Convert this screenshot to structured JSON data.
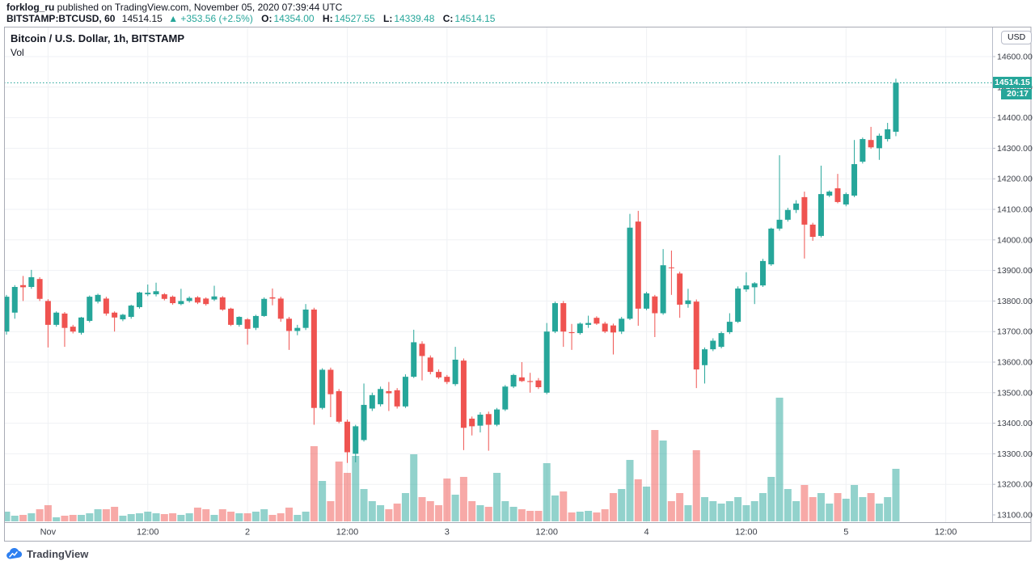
{
  "header": {
    "publisher": "forklog_ru",
    "publish_info": " published on TradingView.com, November 05, 2020 07:39:44 UTC",
    "symbol": "BITSTAMP:BTCUSD, 60",
    "last_price": "14514.15",
    "change": "▲ +353.56 (+2.5%)",
    "ohlc": [
      {
        "label": "O:",
        "value": "14354.00"
      },
      {
        "label": "H:",
        "value": "14527.55"
      },
      {
        "label": "L:",
        "value": "14339.48"
      },
      {
        "label": "C:",
        "value": "14514.15"
      }
    ]
  },
  "legend": {
    "title": "Bitcoin / U.S. Dollar, 1h, BITSTAMP",
    "indicator": "Vol"
  },
  "price_axis": {
    "currency": "USD",
    "last_price_label": "14514.15",
    "countdown": "20:17"
  },
  "footer": {
    "brand": "TradingView",
    "logo_icon": "tradingview-cloud-icon"
  },
  "colors": {
    "up": "#26a69a",
    "down": "#ef5350",
    "vol_opacity": 0.5,
    "grid": "#eff1f4",
    "axis_text": "#3c4049",
    "frame": "#a8abb5",
    "separator": "#b8bcc9",
    "last_price_line": "#26a69a",
    "label_bg": "#26a69a",
    "logo_blue": "#2d7ff0"
  },
  "chart_data": {
    "type": "candlestick",
    "title": "Bitcoin / U.S. Dollar, 1h, BITSTAMP",
    "interval": "1h",
    "currency": "USD",
    "last_price": 14514.15,
    "price_range": [
      13100,
      14600
    ],
    "grid": true,
    "y_ticks": [
      13100,
      13200,
      13300,
      13400,
      13500,
      13600,
      13700,
      13800,
      13900,
      14000,
      14100,
      14200,
      14300,
      14400,
      14500,
      14600
    ],
    "x_ticks": [
      {
        "index": 5,
        "label": "Nov"
      },
      {
        "index": 17,
        "label": "12:00"
      },
      {
        "index": 29,
        "label": "2"
      },
      {
        "index": 41,
        "label": "12:00"
      },
      {
        "index": 53,
        "label": "3"
      },
      {
        "index": 65,
        "label": "12:00"
      },
      {
        "index": 77,
        "label": "4"
      },
      {
        "index": 89,
        "label": "12:00"
      },
      {
        "index": 101,
        "label": "5"
      },
      {
        "index": 113,
        "label": "12:00"
      }
    ],
    "candles_format": [
      "open",
      "high",
      "low",
      "close",
      "volume"
    ],
    "candles": [
      [
        13700,
        13820,
        13690,
        13814,
        12
      ],
      [
        13762,
        13852,
        13742,
        13846,
        7
      ],
      [
        13852,
        13882,
        13800,
        13845,
        8
      ],
      [
        13846,
        13902,
        13840,
        13878,
        10
      ],
      [
        13872,
        13878,
        13800,
        13807,
        15
      ],
      [
        13800,
        13806,
        13648,
        13722,
        20
      ],
      [
        13722,
        13766,
        13716,
        13762,
        5
      ],
      [
        13759,
        13764,
        13650,
        13712,
        7
      ],
      [
        13716,
        13722,
        13694,
        13700,
        8
      ],
      [
        13696,
        13748,
        13690,
        13746,
        8
      ],
      [
        13735,
        13818,
        13730,
        13814,
        10
      ],
      [
        13798,
        13824,
        13792,
        13820,
        15
      ],
      [
        13808,
        13814,
        13752,
        13759,
        15
      ],
      [
        13762,
        13766,
        13700,
        13746,
        18
      ],
      [
        13740,
        13758,
        13734,
        13755,
        7
      ],
      [
        13748,
        13788,
        13742,
        13785,
        9
      ],
      [
        13780,
        13830,
        13775,
        13828,
        10
      ],
      [
        13822,
        13854,
        13816,
        13827,
        12
      ],
      [
        13822,
        13860,
        13815,
        13832,
        10
      ],
      [
        13822,
        13826,
        13802,
        13807,
        9
      ],
      [
        13814,
        13818,
        13788,
        13793,
        10
      ],
      [
        13790,
        13840,
        13786,
        13800,
        8
      ],
      [
        13800,
        13815,
        13795,
        13810,
        10
      ],
      [
        13812,
        13816,
        13790,
        13795,
        17
      ],
      [
        13808,
        13812,
        13785,
        13790,
        15
      ],
      [
        13805,
        13850,
        13800,
        13815,
        8
      ],
      [
        13812,
        13816,
        13768,
        13772,
        15
      ],
      [
        13775,
        13778,
        13718,
        13722,
        12
      ],
      [
        13722,
        13750,
        13716,
        13748,
        10
      ],
      [
        13740,
        13744,
        13657,
        13709,
        10
      ],
      [
        13712,
        13755,
        13705,
        13751,
        12
      ],
      [
        13751,
        13812,
        13748,
        13807,
        15
      ],
      [
        13812,
        13841,
        13786,
        13808,
        8
      ],
      [
        13808,
        13814,
        13732,
        13742,
        10
      ],
      [
        13742,
        13748,
        13640,
        13702,
        17
      ],
      [
        13702,
        13722,
        13688,
        13712,
        8
      ],
      [
        13712,
        13790,
        13705,
        13772,
        12
      ],
      [
        13772,
        13778,
        13395,
        13450,
        93
      ],
      [
        13450,
        13580,
        13445,
        13575,
        50
      ],
      [
        13575,
        13582,
        13420,
        13495,
        25
      ],
      [
        13505,
        13512,
        13400,
        13405,
        74
      ],
      [
        13405,
        13412,
        13270,
        13305,
        60
      ],
      [
        13300,
        13395,
        13272,
        13390,
        81
      ],
      [
        13345,
        13530,
        13340,
        13460,
        40
      ],
      [
        13448,
        13500,
        13440,
        13492,
        25
      ],
      [
        13462,
        13520,
        13455,
        13512,
        20
      ],
      [
        13505,
        13535,
        13440,
        13498,
        15
      ],
      [
        13508,
        13515,
        13448,
        13455,
        22
      ],
      [
        13455,
        13560,
        13450,
        13552,
        35
      ],
      [
        13552,
        13706,
        13548,
        13665,
        83
      ],
      [
        13660,
        13668,
        13540,
        13620,
        30
      ],
      [
        13615,
        13622,
        13560,
        13568,
        25
      ],
      [
        13568,
        13576,
        13545,
        13550,
        20
      ],
      [
        13552,
        13558,
        13528,
        13535,
        53
      ],
      [
        13528,
        13650,
        13522,
        13608,
        33
      ],
      [
        13605,
        13612,
        13312,
        13385,
        55
      ],
      [
        13415,
        13422,
        13360,
        13390,
        25
      ],
      [
        13392,
        13436,
        13370,
        13428,
        20
      ],
      [
        13430,
        13438,
        13310,
        13395,
        18
      ],
      [
        13395,
        13450,
        13390,
        13445,
        60
      ],
      [
        13445,
        13525,
        13440,
        13520,
        25
      ],
      [
        13520,
        13562,
        13515,
        13558,
        18
      ],
      [
        13550,
        13600,
        13535,
        13538,
        15
      ],
      [
        13538,
        13565,
        13500,
        13535,
        13
      ],
      [
        13540,
        13548,
        13512,
        13518,
        13
      ],
      [
        13500,
        13728,
        13495,
        13700,
        72
      ],
      [
        13700,
        13798,
        13695,
        13793,
        32
      ],
      [
        13793,
        13800,
        13650,
        13700,
        37
      ],
      [
        13698,
        13725,
        13640,
        13695,
        11
      ],
      [
        13695,
        13730,
        13690,
        13726,
        12
      ],
      [
        13722,
        13752,
        13712,
        13728,
        13
      ],
      [
        13745,
        13750,
        13722,
        13726,
        11
      ],
      [
        13726,
        13732,
        13695,
        13700,
        15
      ],
      [
        13720,
        13726,
        13625,
        13697,
        35
      ],
      [
        13700,
        13748,
        13692,
        13742,
        40
      ],
      [
        13742,
        14085,
        13738,
        14040,
        76
      ],
      [
        14060,
        14095,
        13719,
        13775,
        52
      ],
      [
        13775,
        13830,
        13770,
        13825,
        43
      ],
      [
        13815,
        13820,
        13682,
        13760,
        113
      ],
      [
        13760,
        13970,
        13755,
        13917,
        100
      ],
      [
        13910,
        13965,
        13820,
        13908,
        25
      ],
      [
        13890,
        13896,
        13745,
        13788,
        35
      ],
      [
        13790,
        13840,
        13778,
        13802,
        20
      ],
      [
        13798,
        13805,
        13515,
        13576,
        88
      ],
      [
        13590,
        13648,
        13530,
        13642,
        30
      ],
      [
        13642,
        13678,
        13636,
        13670,
        25
      ],
      [
        13650,
        13700,
        13645,
        13695,
        22
      ],
      [
        13698,
        13760,
        13692,
        13732,
        25
      ],
      [
        13732,
        13848,
        13728,
        13841,
        30
      ],
      [
        13838,
        13894,
        13830,
        13851,
        20
      ],
      [
        13845,
        13862,
        13790,
        13858,
        25
      ],
      [
        13851,
        13938,
        13846,
        13931,
        35
      ],
      [
        13920,
        14040,
        13915,
        14037,
        55
      ],
      [
        14037,
        14277,
        14030,
        14066,
        153
      ],
      [
        14066,
        14105,
        14060,
        14098,
        40
      ],
      [
        14098,
        14130,
        14088,
        14119,
        25
      ],
      [
        14140,
        14158,
        13939,
        14050,
        45
      ],
      [
        14050,
        14056,
        13997,
        14010,
        30
      ],
      [
        14013,
        14243,
        14008,
        14150,
        35
      ],
      [
        14145,
        14162,
        14140,
        14158,
        22
      ],
      [
        14169,
        14216,
        14120,
        14124,
        35
      ],
      [
        14116,
        14155,
        14110,
        14150,
        28
      ],
      [
        14145,
        14327,
        14140,
        14248,
        45
      ],
      [
        14256,
        14335,
        14250,
        14330,
        30
      ],
      [
        14327,
        14370,
        14298,
        14303,
        35
      ],
      [
        14300,
        14348,
        14262,
        14341,
        22
      ],
      [
        14330,
        14383,
        14322,
        14362,
        30
      ],
      [
        14354,
        14527.55,
        14339.48,
        14514.15,
        65
      ]
    ]
  }
}
